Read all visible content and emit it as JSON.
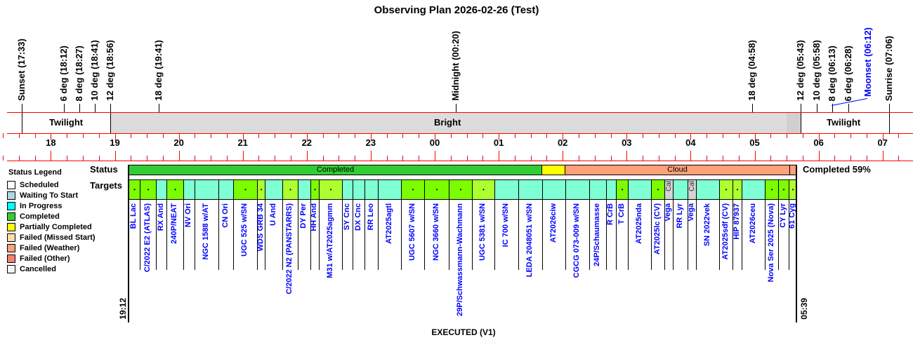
{
  "title": "Observing Plan 2026-02-26 (Test)",
  "events": [
    {
      "label": "Sunset (17:33)",
      "t": -6.45
    },
    {
      "label": "6 deg (18:12)",
      "t": -5.8
    },
    {
      "label": "8 deg (18:27)",
      "t": -5.55
    },
    {
      "label": "10 deg (18:41)",
      "t": -5.317
    },
    {
      "label": "12 deg (18:56)",
      "t": -5.067
    },
    {
      "label": "18 deg (19:41)",
      "t": -4.317
    },
    {
      "label": "Midnight (00:20)",
      "t": 0.333
    },
    {
      "label": "18 deg (04:58)",
      "t": 4.967
    },
    {
      "label": "12 deg (05:43)",
      "t": 5.717
    },
    {
      "label": "10 deg (05:58)",
      "t": 5.967
    },
    {
      "label": "8 deg (06:13)",
      "t": 6.217
    },
    {
      "label": "6 deg (06:28)",
      "t": 6.467
    },
    {
      "label": "Sunrise (07:06)",
      "t": 7.1
    }
  ],
  "moonset": {
    "label": "Moonset (06:12)",
    "t": 6.2,
    "color": "#0000ff"
  },
  "bands": {
    "twilight_label": "Twilight",
    "bright_label": "Bright"
  },
  "hours": [
    "18",
    "19",
    "20",
    "21",
    "22",
    "23",
    "00",
    "01",
    "02",
    "03",
    "04",
    "05",
    "06",
    "07"
  ],
  "legend": {
    "title": "Status Legend",
    "items": [
      {
        "label": "Scheduled",
        "color": "#ffffff"
      },
      {
        "label": "Waiting To Start",
        "color": "#add8e6"
      },
      {
        "label": "In Progress",
        "color": "#00ffff"
      },
      {
        "label": "Completed",
        "color": "#32cd32"
      },
      {
        "label": "Partially Completed",
        "color": "#ffff00"
      },
      {
        "label": "Failed (Missed Start)",
        "color": "#ffdead"
      },
      {
        "label": "Failed (Weather)",
        "color": "#ffa07a"
      },
      {
        "label": "Failed (Other)",
        "color": "#fa8072"
      },
      {
        "label": "Cancelled",
        "color": "#f5f5f5"
      }
    ]
  },
  "status_label": "Status",
  "targets_label": "Targets",
  "status_segments": [
    {
      "label": "Completed",
      "color": "#32cd32"
    },
    {
      "label": "",
      "color": "#ffff00"
    },
    {
      "label": "Cloud",
      "color": "#ffa07a"
    },
    {
      "label": "",
      "color": "#ffa07a"
    }
  ],
  "completion": "Completed 59%",
  "start_time": "19:12",
  "end_time": "05:39",
  "footer": "EXECUTED (V1)",
  "cal_label": "Cal",
  "dot": "•",
  "targets": [
    {
      "name": "BL Lac",
      "c": "#7cfc00",
      "d": 1
    },
    {
      "name": "C/2022 E2 (ATLAS)",
      "c": "#7cfc00",
      "d": 1
    },
    {
      "name": "RX And",
      "c": "#7fffd4"
    },
    {
      "name": "240P/NEAT",
      "c": "#7cfc00",
      "d": 1
    },
    {
      "name": "NV Ori",
      "c": "#7fffd4"
    },
    {
      "name": "NGC 1588 w/AT",
      "c": "#7fffd4"
    },
    {
      "name": "CN Ori",
      "c": "#7fffd4"
    },
    {
      "name": "UGC 525 w/SN",
      "c": "#7cfc00",
      "d": 1
    },
    {
      "name": "WDS GRB 34",
      "c": "#adff2f",
      "d": 1
    },
    {
      "name": "U And",
      "c": "#7fffd4"
    },
    {
      "name": "C/2022 N2 (PANSTARRS)",
      "c": "#adff2f",
      "d": 1
    },
    {
      "name": "DY Per",
      "c": "#7fffd4"
    },
    {
      "name": "HH And",
      "c": "#7cfc00",
      "d": 1
    },
    {
      "name": "M31 w/AT2025agmm",
      "c": "#adff2f",
      "d": 1
    },
    {
      "name": "SY Cnc",
      "c": "#7fffd4"
    },
    {
      "name": "DX Cnc",
      "c": "#7fffd4"
    },
    {
      "name": "RR Leo",
      "c": "#7fffd4"
    },
    {
      "name": "AT2025agtl",
      "c": "#7fffd4"
    },
    {
      "name": "UGC 5607 w/SN",
      "c": "#7cfc00",
      "d": 1
    },
    {
      "name": "NGC 3660 w/SN",
      "c": "#7cfc00",
      "d": 1
    },
    {
      "name": "29P/Schwassmann-Wachmann",
      "c": "#7cfc00",
      "d": 1
    },
    {
      "name": "UGC 5381 w/SN",
      "c": "#adff2f",
      "d": 1
    },
    {
      "name": "IC 700 w/SN",
      "c": "#7fffd4"
    },
    {
      "name": "LEDA 2048051 w/SN",
      "c": "#7fffd4"
    },
    {
      "name": "AT2026ciw",
      "c": "#7fffd4"
    },
    {
      "name": "CGCG 073-009 w/SN",
      "c": "#7fffd4"
    },
    {
      "name": "24P/Schaumasse",
      "c": "#7fffd4"
    },
    {
      "name": "R CrB",
      "c": "#7fffd4"
    },
    {
      "name": "T CrB",
      "c": "#7cfc00",
      "d": 1
    },
    {
      "name": "AT2025nda",
      "c": "#7fffd4"
    },
    {
      "name": "AT2025lc (CV)",
      "c": "#7cfc00",
      "d": 1
    },
    {
      "name": "Vega",
      "c": "#d3d3d3",
      "cal": 1
    },
    {
      "name": "RR Lyr",
      "c": "#7fffd4"
    },
    {
      "name": "Vega",
      "c": "#d3d3d3",
      "cal": 1
    },
    {
      "name": "SN 2022vek",
      "c": "#7fffd4"
    },
    {
      "name": "AT2025sdf (CV)",
      "c": "#adff2f",
      "d": 1
    },
    {
      "name": "HIP 87937",
      "c": "#adff2f",
      "d": 1
    },
    {
      "name": "AT2026ceu",
      "c": "#7fffd4"
    },
    {
      "name": "Nova Ser 2025 (Nova)",
      "c": "#7cfc00",
      "d": 1
    },
    {
      "name": "CY Lyr",
      "c": "#7cfc00",
      "d": 1
    },
    {
      "name": "61 Cyg",
      "c": "#adff2f",
      "d": 1
    }
  ]
}
